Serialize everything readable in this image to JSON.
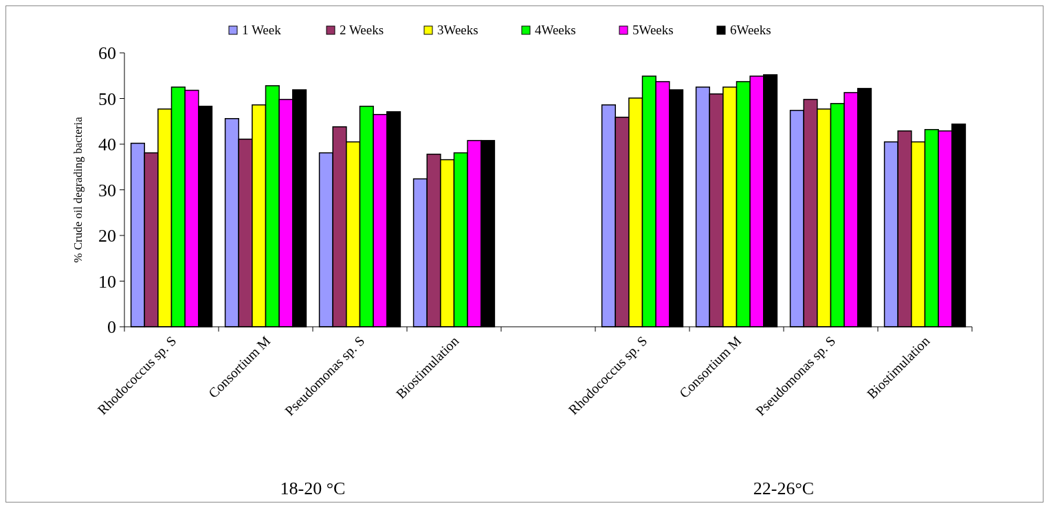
{
  "chart_data": {
    "type": "bar",
    "ylabel": "% Crude oil degrading bacteria",
    "categories": [
      "Rhodococcus sp. S",
      "Consortium M",
      "Pseudomonas sp. S",
      "Biostimulation",
      null,
      "Rhodococcus sp. S",
      "Consortium M",
      "Pseudomonas sp. S",
      "Biostimulation"
    ],
    "series": [
      {
        "name": "1 Week",
        "color": "#9999ff",
        "values": [
          40.2,
          45.6,
          38.1,
          32.4,
          null,
          48.6,
          52.5,
          47.4,
          40.5
        ]
      },
      {
        "name": "2 Weeks",
        "color": "#993366",
        "values": [
          38.1,
          41.1,
          43.8,
          37.8,
          null,
          45.9,
          51.0,
          49.8,
          42.9
        ]
      },
      {
        "name": "3Weeks",
        "color": "#ffff00",
        "values": [
          47.7,
          48.6,
          40.5,
          36.6,
          null,
          50.1,
          52.5,
          47.7,
          40.5
        ]
      },
      {
        "name": "4Weeks",
        "color": "#00ff00",
        "values": [
          52.5,
          52.8,
          48.3,
          38.1,
          null,
          54.9,
          53.7,
          48.9,
          43.2
        ]
      },
      {
        "name": "5Weeks",
        "color": "#ff00ff",
        "values": [
          51.8,
          49.8,
          46.5,
          40.8,
          null,
          53.7,
          54.9,
          51.3,
          42.9
        ]
      },
      {
        "name": "6Weeks",
        "color": "#000000",
        "values": [
          48.3,
          51.9,
          47.1,
          40.8,
          null,
          51.9,
          55.2,
          52.2,
          44.4
        ]
      }
    ],
    "ylim": [
      0,
      60
    ],
    "yticks": [
      0,
      10,
      20,
      30,
      40,
      50,
      60
    ],
    "grid": false,
    "legend": "top",
    "annotations": [
      "18-20 °C",
      "22-26°C"
    ]
  }
}
